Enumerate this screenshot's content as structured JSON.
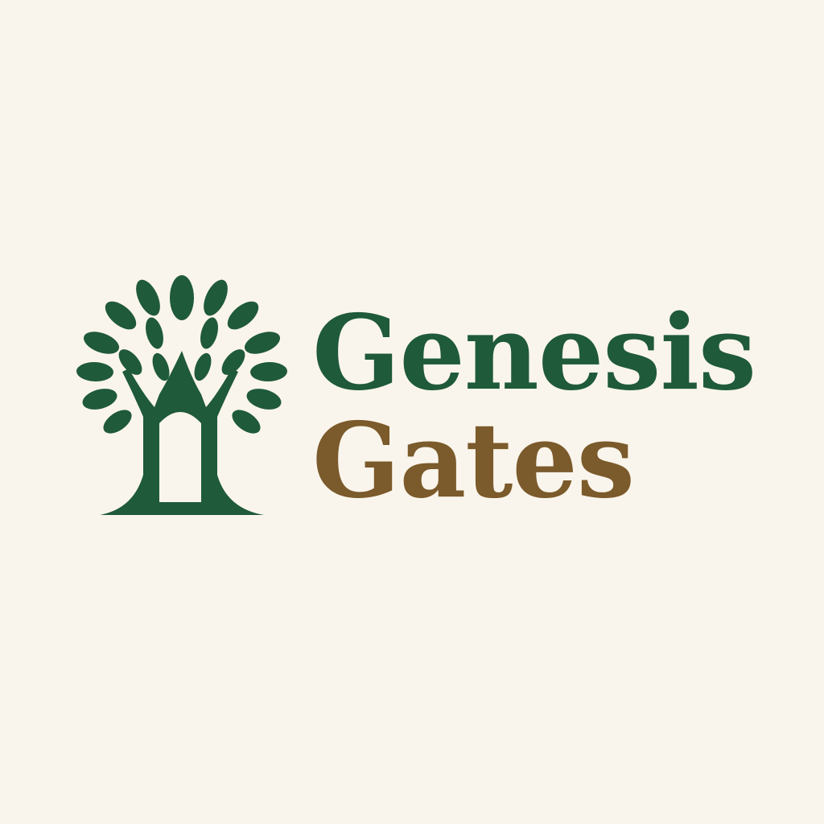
{
  "brand": {
    "name_line1": "Genesis",
    "name_line2": "Gates"
  },
  "logo": {
    "icon": "tree-gate-icon"
  },
  "colors": {
    "background": "#faf5ec",
    "primary_green": "#1f5a3a",
    "secondary_brown": "#7b5a2b"
  }
}
